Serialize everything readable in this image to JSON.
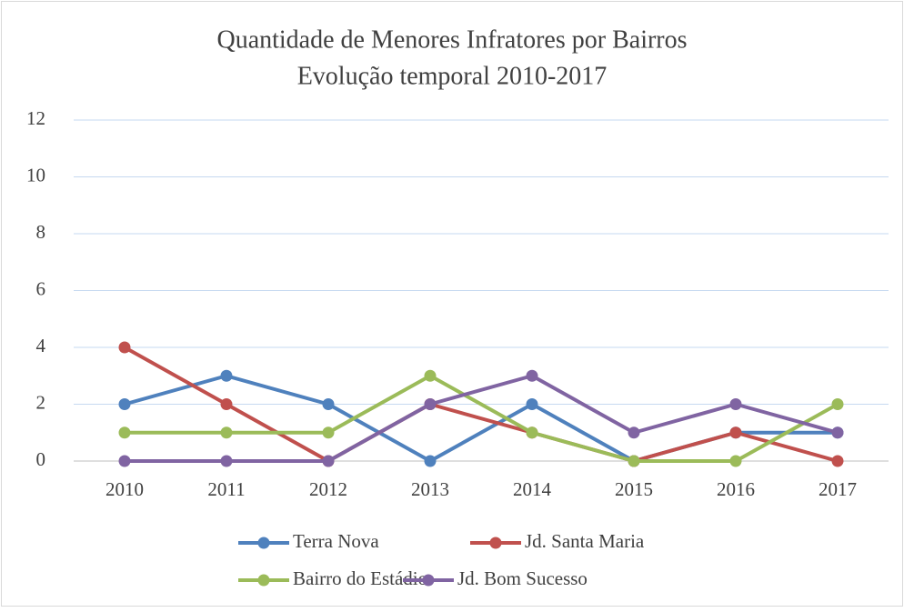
{
  "chart_data": {
    "type": "line",
    "title": "Quantidade de Menores Infratores por Bairros",
    "subtitle": "Evolução temporal 2010-2017",
    "categories": [
      "2010",
      "2011",
      "2012",
      "2013",
      "2014",
      "2015",
      "2016",
      "2017"
    ],
    "series": [
      {
        "name": "Terra Nova",
        "color": "#4f81bd",
        "values": [
          2,
          3,
          2,
          0,
          2,
          0,
          1,
          1
        ]
      },
      {
        "name": "Jd. Santa Maria",
        "color": "#c0504d",
        "values": [
          4,
          2,
          0,
          2,
          1,
          0,
          1,
          0
        ]
      },
      {
        "name": "Bairro do Estádio",
        "color": "#9bbb59",
        "values": [
          1,
          1,
          1,
          3,
          1,
          0,
          0,
          2
        ]
      },
      {
        "name": "Jd. Bom Sucesso",
        "color": "#8064a2",
        "values": [
          0,
          0,
          0,
          2,
          3,
          1,
          2,
          1
        ]
      }
    ],
    "ylim": [
      0,
      12
    ],
    "yticks": [
      0,
      2,
      4,
      6,
      8,
      10,
      12
    ],
    "grid": true,
    "legend": "bottom"
  }
}
